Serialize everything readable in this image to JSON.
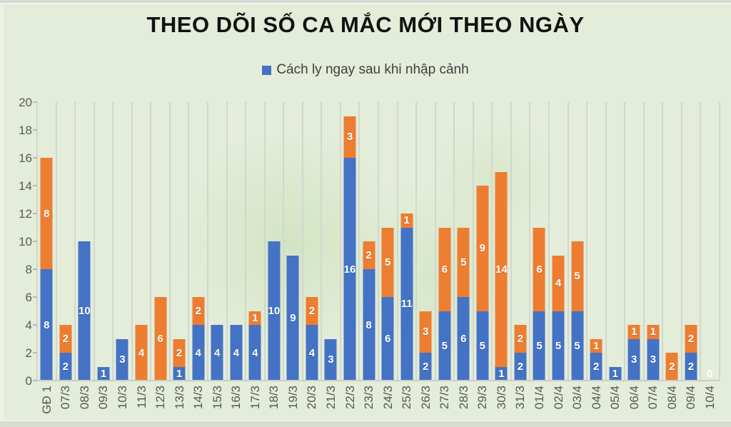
{
  "title": "THEO DÕI SỐ CA MẮC MỚI THEO NGÀY",
  "legend": {
    "label": "Cách ly ngay sau khi nhập cảnh",
    "swatch_color": "#4472C4"
  },
  "chart_data": {
    "type": "bar",
    "stacked": true,
    "title": "THEO DÕI SỐ CA MẮC MỚI THEO NGÀY",
    "xlabel": "",
    "ylabel": "",
    "ylim": [
      0,
      20
    ],
    "yticks": [
      0,
      2,
      4,
      6,
      8,
      10,
      12,
      14,
      16,
      18,
      20
    ],
    "grid": "vertical-category-gridlines",
    "legend_position": "top-center",
    "background_color": "#e3edd9",
    "gridline_color": "#d3d6cf",
    "categories": [
      "GĐ 1",
      "07/3",
      "08/3",
      "09/3",
      "10/3",
      "11/3",
      "12/3",
      "13/3",
      "14/3",
      "15/3",
      "16/3",
      "17/3",
      "18/3",
      "19/3",
      "20/3",
      "21/3",
      "22/3",
      "23/3",
      "24/3",
      "25/3",
      "26/3",
      "27/3",
      "28/3",
      "29/3",
      "30/3",
      "31/3",
      "01/4",
      "02/4",
      "03/4",
      "04/4",
      "05/4",
      "06/4",
      "07/4",
      "08/4",
      "09/4",
      "10/4"
    ],
    "series": [
      {
        "name": "Cách ly ngay sau khi nhập cảnh",
        "color": "#4472C4",
        "values": [
          8,
          2,
          10,
          1,
          3,
          0,
          0,
          1,
          4,
          4,
          4,
          4,
          10,
          9,
          4,
          3,
          16,
          8,
          6,
          11,
          2,
          5,
          6,
          5,
          1,
          2,
          5,
          5,
          5,
          2,
          1,
          3,
          3,
          0,
          2,
          0
        ]
      },
      {
        "name": "",
        "color": "#ED7D31",
        "values": [
          8,
          2,
          0,
          0,
          0,
          4,
          6,
          2,
          2,
          0,
          0,
          1,
          0,
          0,
          2,
          0,
          3,
          2,
          5,
          1,
          3,
          6,
          5,
          9,
          14,
          2,
          6,
          4,
          5,
          1,
          0,
          1,
          1,
          2,
          2,
          0
        ]
      }
    ],
    "zero_total_label": "0"
  }
}
